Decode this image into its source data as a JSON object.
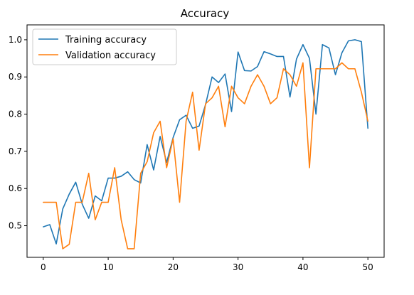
{
  "chart_data": {
    "type": "line",
    "title": "Accuracy",
    "xlabel": "",
    "ylabel": "",
    "xlim": [
      -2.5,
      52.5
    ],
    "ylim": [
      0.415,
      1.04
    ],
    "x_ticks": [
      0,
      10,
      20,
      30,
      40,
      50
    ],
    "y_ticks": [
      0.5,
      0.6,
      0.7,
      0.8,
      0.9,
      1.0
    ],
    "x_tick_labels": [
      "0",
      "10",
      "20",
      "30",
      "40",
      "50"
    ],
    "y_tick_labels": [
      "0.5",
      "0.6",
      "0.7",
      "0.8",
      "0.9",
      "1.0"
    ],
    "grid": false,
    "legend_position": "top-left",
    "x": [
      0,
      1,
      2,
      3,
      4,
      5,
      6,
      7,
      8,
      9,
      10,
      11,
      12,
      13,
      14,
      15,
      16,
      17,
      18,
      19,
      20,
      21,
      22,
      23,
      24,
      25,
      26,
      27,
      28,
      29,
      30,
      31,
      32,
      33,
      34,
      35,
      36,
      37,
      38,
      39,
      40,
      41,
      42,
      43,
      44,
      45,
      46,
      47,
      48,
      49,
      50
    ],
    "series": [
      {
        "name": "Training accuracy",
        "color": "#1f77b4",
        "values": [
          0.497,
          0.503,
          0.451,
          0.545,
          0.585,
          0.617,
          0.558,
          0.52,
          0.58,
          0.567,
          0.628,
          0.628,
          0.633,
          0.645,
          0.624,
          0.615,
          0.718,
          0.65,
          0.74,
          0.67,
          0.737,
          0.785,
          0.797,
          0.762,
          0.768,
          0.826,
          0.9,
          0.885,
          0.908,
          0.807,
          0.967,
          0.917,
          0.916,
          0.928,
          0.968,
          0.962,
          0.955,
          0.955,
          0.846,
          0.948,
          0.987,
          0.95,
          0.8,
          0.987,
          0.978,
          0.906,
          0.965,
          0.997,
          1.0,
          0.995,
          0.762
        ]
      },
      {
        "name": "Validation accuracy",
        "color": "#ff7f0e",
        "values": [
          0.563,
          0.563,
          0.563,
          0.438,
          0.45,
          0.563,
          0.563,
          0.641,
          0.516,
          0.563,
          0.563,
          0.656,
          0.516,
          0.438,
          0.438,
          0.641,
          0.672,
          0.75,
          0.781,
          0.656,
          0.734,
          0.563,
          0.781,
          0.859,
          0.703,
          0.828,
          0.844,
          0.875,
          0.766,
          0.875,
          0.844,
          0.828,
          0.875,
          0.906,
          0.875,
          0.828,
          0.844,
          0.922,
          0.906,
          0.875,
          0.938,
          0.656,
          0.922,
          0.922,
          0.922,
          0.922,
          0.938,
          0.922,
          0.922,
          0.859,
          0.781
        ]
      }
    ]
  }
}
